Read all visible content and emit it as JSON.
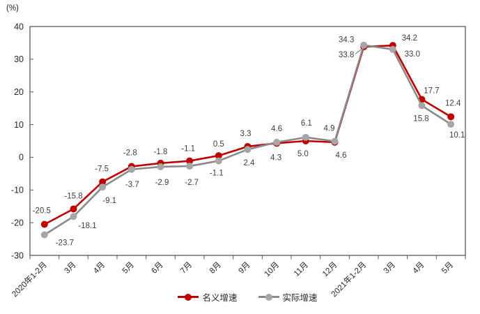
{
  "chart_data": {
    "type": "line",
    "title": "",
    "unit": "(%)",
    "categories": [
      "2020年1-2月",
      "3月",
      "4月",
      "5月",
      "6月",
      "7月",
      "8月",
      "9月",
      "10月",
      "11月",
      "12月",
      "2021年1-2月",
      "3月",
      "4月",
      "5月"
    ],
    "series": [
      {
        "key": "nominal",
        "name": "名义增速",
        "color": "#C00000",
        "values": [
          -20.5,
          -15.8,
          -7.5,
          -2.8,
          -1.8,
          -1.1,
          0.5,
          3.3,
          4.3,
          5.0,
          4.6,
          33.8,
          34.2,
          17.7,
          12.4
        ],
        "label_offsets": [
          [
            -4,
            -20
          ],
          [
            0,
            -19
          ],
          [
            -1,
            -19
          ],
          [
            -2,
            -20
          ],
          [
            0,
            -17
          ],
          [
            -2,
            -18
          ],
          [
            0,
            -17
          ],
          [
            -3,
            -19
          ],
          [
            -1,
            20
          ],
          [
            -4,
            18
          ],
          [
            9,
            18
          ],
          [
            -25,
            11
          ],
          [
            24,
            -11
          ],
          [
            14,
            -13
          ],
          [
            3,
            -20
          ]
        ],
        "leader_index": 11
      },
      {
        "key": "real",
        "name": "实际增速",
        "color": "#A6A6A6",
        "line_color": "#8A8A8A",
        "values": [
          -23.7,
          -18.1,
          -9.1,
          -3.7,
          -2.9,
          -2.7,
          -1.1,
          2.4,
          4.6,
          6.1,
          4.9,
          34.3,
          33.0,
          15.8,
          10.1
        ],
        "label_offsets": [
          [
            29,
            11
          ],
          [
            20,
            13
          ],
          [
            10,
            19
          ],
          [
            1,
            21
          ],
          [
            2,
            22
          ],
          [
            3,
            23
          ],
          [
            -3,
            17
          ],
          [
            2,
            19
          ],
          [
            0,
            -20
          ],
          [
            1,
            -21
          ],
          [
            -8,
            -19
          ],
          [
            -25,
            -8
          ],
          [
            28,
            6
          ],
          [
            -1,
            18
          ],
          [
            9,
            15
          ]
        ]
      }
    ],
    "ylim": [
      -30,
      40
    ],
    "yticks": [
      40,
      30,
      20,
      10,
      0,
      -10,
      -20,
      -30
    ],
    "grid": false,
    "legend_position": "bottom-center",
    "axis_color": "#595959",
    "tick_label_color": "#262626",
    "data_label_color": "#3d3d3d",
    "background_color": "#ffffff"
  }
}
